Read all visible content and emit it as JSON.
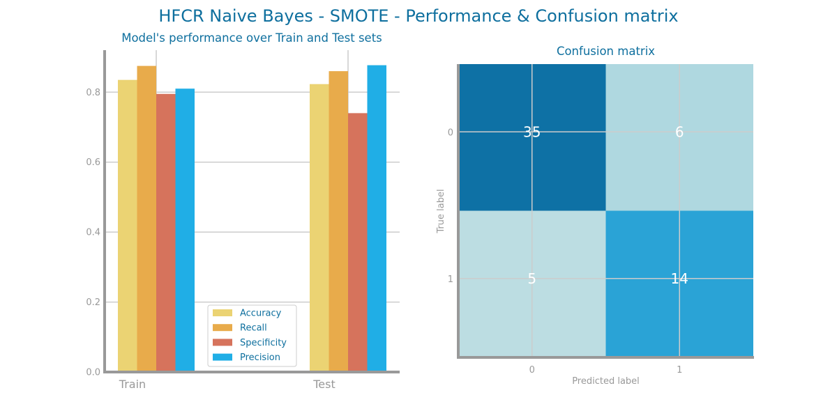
{
  "figure": {
    "title": "HFCR Naive Bayes - SMOTE - Performance & Confusion matrix"
  },
  "chart_data": [
    {
      "type": "bar",
      "title": "Model's performance over Train and Test sets",
      "xlabel": "",
      "ylabel": "",
      "categories": [
        "Train",
        "Test"
      ],
      "series": [
        {
          "name": "Accuracy",
          "values": [
            0.835,
            0.823
          ],
          "color": "#ebd373"
        },
        {
          "name": "Recall",
          "values": [
            0.875,
            0.86
          ],
          "color": "#e8ab4b"
        },
        {
          "name": "Specificity",
          "values": [
            0.795,
            0.74
          ],
          "color": "#d6735c"
        },
        {
          "name": "Precision",
          "values": [
            0.81,
            0.877
          ],
          "color": "#20aee6"
        }
      ],
      "ylim": [
        0,
        0.92
      ],
      "yticks": [
        0.0,
        0.2,
        0.4,
        0.6,
        0.8
      ],
      "ytick_labels": [
        "0.0",
        "0.2",
        "0.4",
        "0.6",
        "0.8"
      ],
      "grid": true,
      "legend": "lower-center"
    },
    {
      "type": "heatmap",
      "title": "Confusion matrix",
      "xlabel": "Predicted label",
      "ylabel": "True label",
      "x_categories": [
        "0",
        "1"
      ],
      "y_categories": [
        "0",
        "1"
      ],
      "values": [
        [
          35,
          6
        ],
        [
          5,
          14
        ]
      ],
      "colors": [
        [
          "#0e71a5",
          "#afd8e0"
        ],
        [
          "#bcdde2",
          "#2aa3d6"
        ]
      ],
      "grid": true
    }
  ],
  "colors": {
    "title": "#0e6f9e",
    "axis": "#999999",
    "tick_label": "#999999",
    "grid": "#cccccc",
    "legend_text": "#0e6f9e",
    "cell_text": "#ffffff"
  }
}
